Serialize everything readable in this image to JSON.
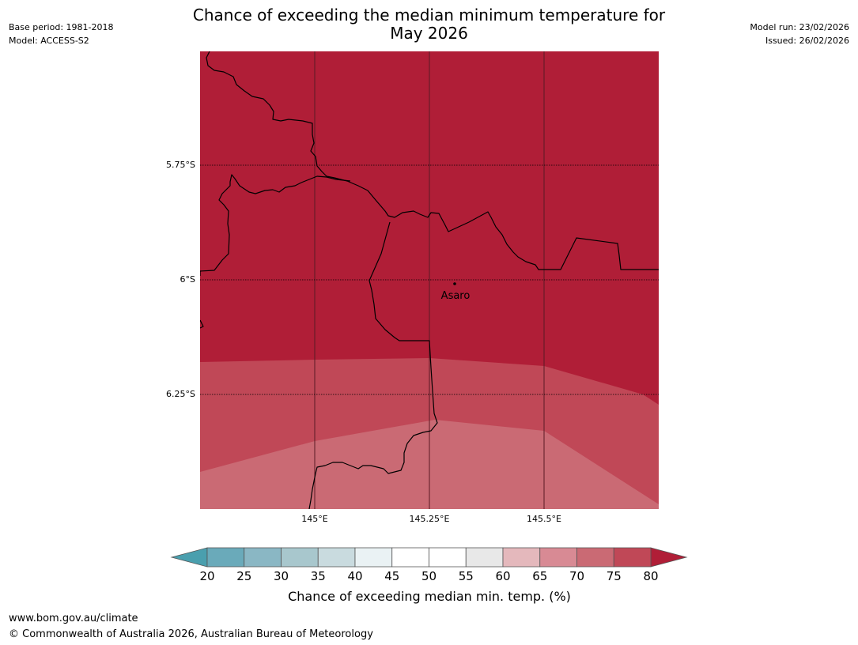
{
  "title_line1": "Chance of exceeding the median minimum temperature for",
  "title_line2": "May 2026",
  "base_period": "Base period: 1981-2018",
  "model": "Model: ACCESS-S2",
  "model_run": "Model run: 23/02/2026",
  "issued": "Issued: 26/02/2026",
  "map": {
    "place_name": "Asaro",
    "lat_labels": [
      "5.75°S",
      "6°S",
      "6.25°S"
    ],
    "lon_labels": [
      "145°E",
      "145.25°E",
      "145.5°E"
    ],
    "region_colors": {
      "above_80": "#b01e37",
      "75_80": "#c04857",
      "70_75": "#ca6a74"
    }
  },
  "colorbar": {
    "ticks": [
      "20",
      "25",
      "30",
      "35",
      "40",
      "45",
      "50",
      "55",
      "60",
      "65",
      "70",
      "75",
      "80"
    ],
    "colors": [
      "#6aaaba",
      "#8ab7c4",
      "#a8c7cd",
      "#c9dbdf",
      "#eaf2f4",
      "#ffffff",
      "#ffffff",
      "#e8e8e8",
      "#e4b8bc",
      "#d88a94",
      "#ca6a74",
      "#c04857"
    ],
    "under_color": "#4a9fae",
    "over_color": "#b01e37",
    "label": "Chance of exceeding median min. temp. (%)"
  },
  "footer": {
    "url": "www.bom.gov.au/climate",
    "copyright": "© Commonwealth of Australia 2026, Australian Bureau of Meteorology"
  }
}
